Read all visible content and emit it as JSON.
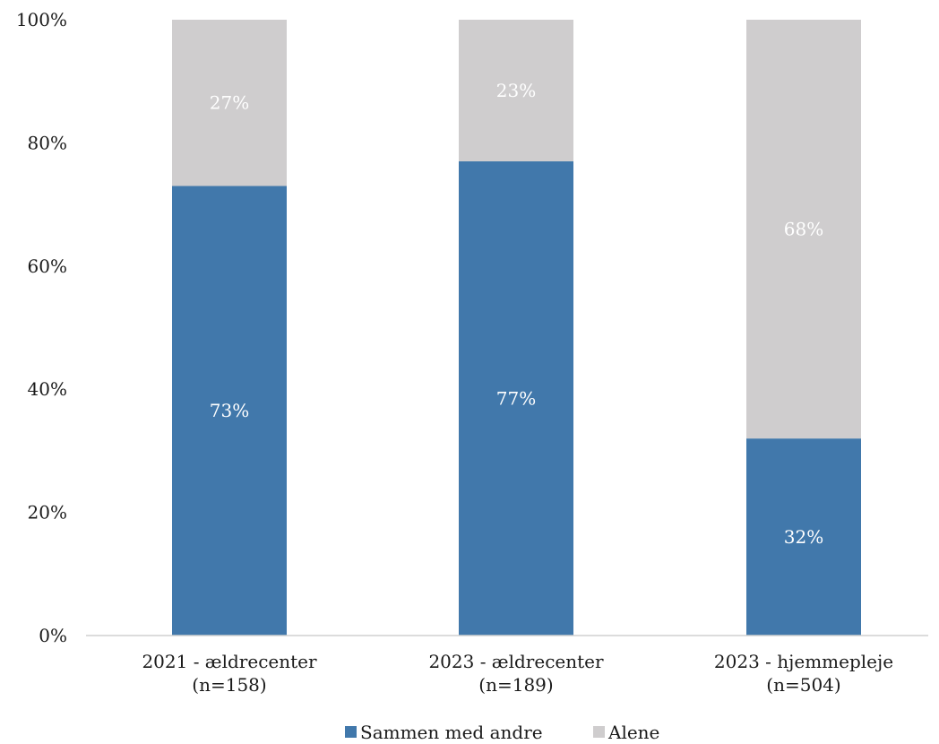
{
  "chart_data": {
    "type": "bar",
    "stacked": true,
    "categories": [
      [
        "2021 - ældrecenter",
        "(n=158)"
      ],
      [
        "2023 - ældrecenter",
        "(n=189)"
      ],
      [
        "2023 - hjemmepleje",
        "(n=504)"
      ]
    ],
    "series": [
      {
        "name": "Sammen med andre",
        "values": [
          73,
          77,
          32
        ],
        "labels": [
          "73%",
          "77%",
          "32%"
        ],
        "color": "#4178ab"
      },
      {
        "name": "Alene",
        "values": [
          27,
          23,
          68
        ],
        "labels": [
          "27%",
          "23%",
          "68%"
        ],
        "color": "#cfcdce"
      }
    ],
    "ylim": [
      0,
      100
    ],
    "yticks": [
      "0%",
      "20%",
      "40%",
      "60%",
      "80%",
      "100%"
    ],
    "ytick_values": [
      0,
      20,
      40,
      60,
      80,
      100
    ],
    "grid": false,
    "legend": "bottom"
  }
}
